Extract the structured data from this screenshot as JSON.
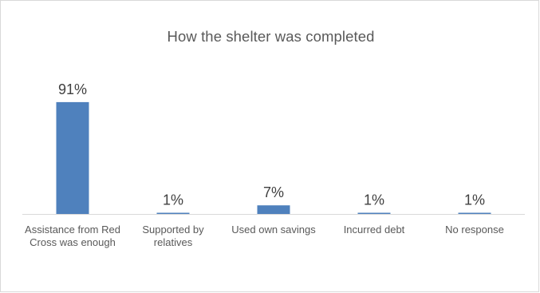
{
  "chart_data": {
    "type": "bar",
    "title": "How the shelter was completed",
    "categories": [
      "Assistance from Red Cross was enough",
      "Supported by relatives",
      "Used own savings",
      "Incurred debt",
      "No response"
    ],
    "values": [
      91,
      1,
      7,
      1,
      1
    ],
    "data_labels": [
      "91%",
      "1%",
      "7%",
      "1%",
      "1%"
    ],
    "unit": "%",
    "ylim": [
      0,
      100
    ],
    "grid": false,
    "legend": "none",
    "bar_color": "#4f81bd",
    "axis_color": "#d9d9d9"
  }
}
